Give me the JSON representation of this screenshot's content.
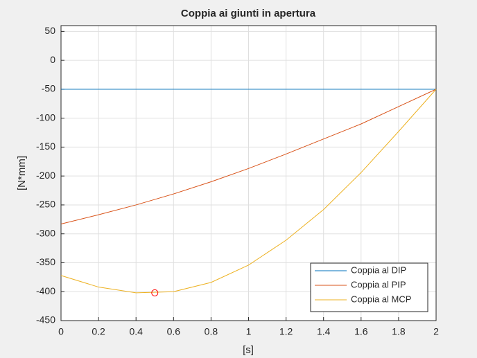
{
  "chart_data": {
    "type": "line",
    "title": "Coppia ai giunti in apertura",
    "x_label": "[s]",
    "y_label": "[N*mm]",
    "x": [
      0,
      0.2,
      0.4,
      0.6,
      0.8,
      1.0,
      1.2,
      1.4,
      1.6,
      1.8,
      2.0
    ],
    "series": [
      {
        "name": "Coppia al DIP",
        "color": "#0072bd",
        "values": [
          -50,
          -50,
          -50,
          -50,
          -50,
          -50,
          -50,
          -50,
          -50,
          -50,
          -50
        ]
      },
      {
        "name": "Coppia al PIP",
        "color": "#d95319",
        "values": [
          -283,
          -267,
          -250,
          -231,
          -210,
          -187,
          -162,
          -136,
          -110,
          -80,
          -50
        ]
      },
      {
        "name": "Coppia al MCP",
        "color": "#edb120",
        "values": [
          -372,
          -392,
          -402,
          -400,
          -384,
          -354,
          -311,
          -258,
          -194,
          -123,
          -50
        ]
      }
    ],
    "marker": {
      "x": 0.5,
      "y": -402,
      "color": "#ff0000"
    },
    "xlim": [
      0,
      2
    ],
    "xticks": [
      0,
      0.2,
      0.4,
      0.6,
      0.8,
      1,
      1.2,
      1.4,
      1.6,
      1.8,
      2
    ],
    "ylim": [
      -450,
      60
    ],
    "yticks": [
      -450,
      -400,
      -350,
      -300,
      -250,
      -200,
      -150,
      -100,
      -50,
      0,
      50
    ],
    "grid": true,
    "legend": "lower-right"
  }
}
